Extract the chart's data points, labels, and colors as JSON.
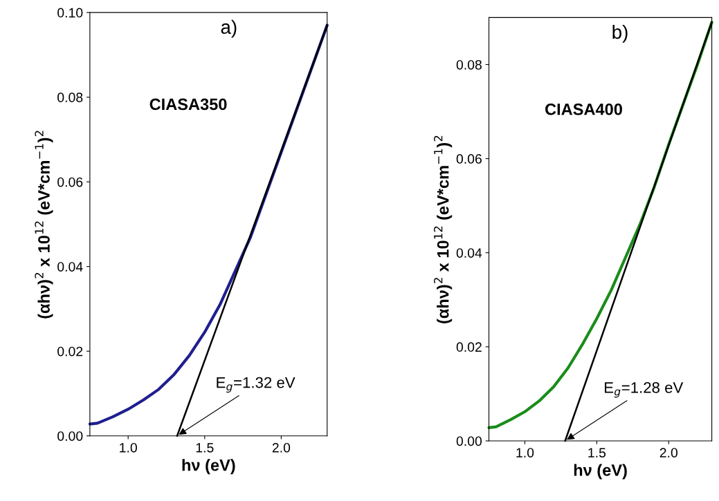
{
  "chart_data": [
    {
      "type": "line",
      "xlabel": "hν (eV)",
      "ylabel": "(αhν)$^{2}$ x 10$^{12}$ (eV*cm$^{−1}$)$^{2}$",
      "xlim": [
        0.75,
        2.3
      ],
      "ylim": [
        0,
        0.1
      ],
      "xticks": [
        {
          "value": 1.0,
          "label": "1.0"
        },
        {
          "value": 1.5,
          "label": "1.5"
        },
        {
          "value": 2.0,
          "label": "2.0"
        }
      ],
      "yticks": [
        {
          "value": 0,
          "label": "0.00"
        },
        {
          "value": 0.02,
          "label": "0.02"
        },
        {
          "value": 0.04,
          "label": "0.04"
        },
        {
          "value": 0.06,
          "label": "0.06"
        },
        {
          "value": 0.08,
          "label": "0.08"
        },
        {
          "value": 0.1,
          "label": "0.10"
        }
      ],
      "series": [
        {
          "color": "#1f1f8f",
          "x": [
            0.75,
            0.8,
            0.9,
            1.0,
            1.1,
            1.2,
            1.3,
            1.4,
            1.5,
            1.6,
            1.7,
            1.8,
            1.9,
            2.0,
            2.1,
            2.2,
            2.3
          ],
          "values": [
            0.0028,
            0.003,
            0.0045,
            0.0063,
            0.0085,
            0.011,
            0.0145,
            0.019,
            0.0245,
            0.031,
            0.039,
            0.047,
            0.057,
            0.067,
            0.077,
            0.087,
            0.097
          ]
        },
        {
          "type": "line",
          "color": "#000000",
          "x": [
            1.32,
            2.3
          ],
          "values": [
            0,
            0.097
          ]
        }
      ],
      "annotations": [
        "a)",
        "CIASA350",
        {
          "text": "E$_{g}$=1.32 eV",
          "x": 1.32,
          "y": 0
        }
      ]
    },
    {
      "type": "line",
      "xlabel": "hν (eV)",
      "ylabel": "(αhν)$^{2}$ x 10$^{12}$ (eV*cm$^{−1}$)$^{2}$",
      "xlim": [
        0.75,
        2.3
      ],
      "ylim": [
        0,
        0.09
      ],
      "xticks": [
        {
          "value": 1.0,
          "label": "1.0"
        },
        {
          "value": 1.5,
          "label": "1.5"
        },
        {
          "value": 2.0,
          "label": "2.0"
        }
      ],
      "yticks": [
        {
          "value": 0,
          "label": "0.00"
        },
        {
          "value": 0.02,
          "label": "0.02"
        },
        {
          "value": 0.04,
          "label": "0.04"
        },
        {
          "value": 0.06,
          "label": "0.06"
        },
        {
          "value": 0.08,
          "label": "0.08"
        }
      ],
      "series": [
        {
          "color": "#1a8c1a",
          "x": [
            0.75,
            0.8,
            0.9,
            1.0,
            1.1,
            1.2,
            1.3,
            1.4,
            1.5,
            1.6,
            1.7,
            1.8,
            1.9,
            2.0,
            2.1,
            2.2,
            2.3
          ],
          "values": [
            0.0028,
            0.003,
            0.0045,
            0.0062,
            0.0085,
            0.0115,
            0.0155,
            0.0205,
            0.026,
            0.032,
            0.039,
            0.046,
            0.054,
            0.063,
            0.0715,
            0.08,
            0.089
          ]
        },
        {
          "type": "line",
          "color": "#000000",
          "x": [
            1.28,
            2.3
          ],
          "values": [
            0,
            0.089
          ]
        }
      ],
      "annotations": [
        "b)",
        "CIASA400",
        {
          "text": "E$_{g}$=1.28 eV",
          "x": 1.28,
          "y": 0
        }
      ]
    }
  ]
}
